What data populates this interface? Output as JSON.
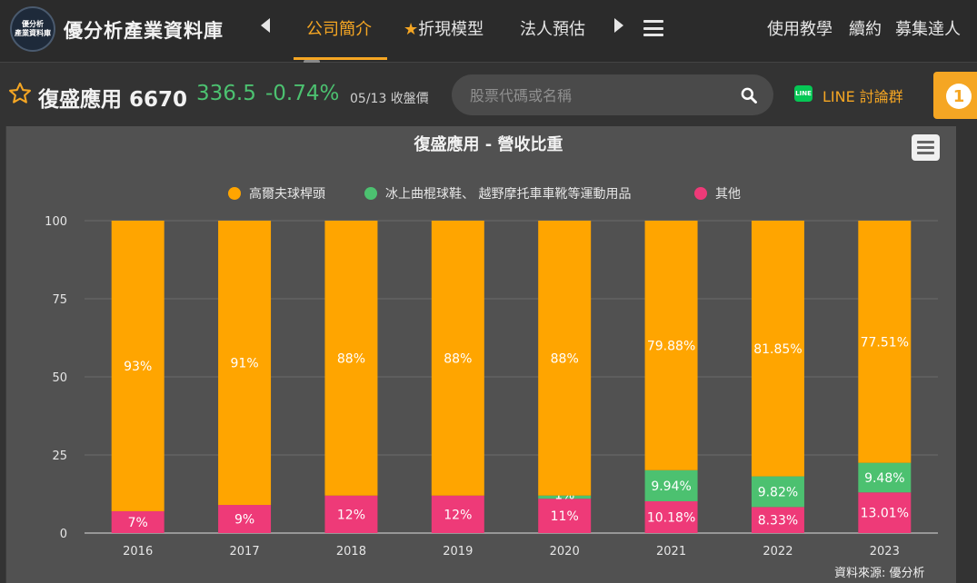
{
  "header": {
    "logo_line1": "優分析",
    "logo_line2": "產業資料庫",
    "site_title": "優分析產業資料庫",
    "nav": [
      {
        "label": "公司簡介",
        "active": true
      },
      {
        "label": "折現模型",
        "icon": "star-icon"
      },
      {
        "label": "法人預估"
      }
    ],
    "right_links": [
      "使用教學",
      "續約",
      "募集達人"
    ]
  },
  "stock": {
    "name_code": "復盛應用 6670",
    "price": "336.5",
    "change": "-0.74%",
    "date_label": "05/13 收盤價",
    "price_color": "#4cc170"
  },
  "search": {
    "placeholder": "股票代碼或名稱"
  },
  "line_group": {
    "label": "LINE 討論群",
    "icon_text": "LINE"
  },
  "notification": {
    "count": "1"
  },
  "chart_data": {
    "type": "bar",
    "stacked": true,
    "title": "復盛應用 - 營收比重",
    "categories": [
      "2016",
      "2017",
      "2018",
      "2019",
      "2020",
      "2021",
      "2022",
      "2023"
    ],
    "ylim": [
      0,
      100
    ],
    "yticks": [
      0,
      25,
      50,
      75,
      100
    ],
    "grid": true,
    "legend_position": "top",
    "series": [
      {
        "name": "其他",
        "color": "#ee3a78",
        "values": [
          7,
          9,
          12,
          12,
          11,
          10.18,
          8.33,
          13.01
        ],
        "labels": [
          "7%",
          "9%",
          "12%",
          "12%",
          "11%",
          "10.18%",
          "8.33%",
          "13.01%"
        ]
      },
      {
        "name": "冰上曲棍球鞋、 越野摩托車車靴等運動用品",
        "color": "#4cc170",
        "values": [
          0,
          0,
          0,
          0,
          1,
          9.94,
          9.82,
          9.48
        ],
        "labels": [
          "",
          "",
          "",
          "",
          "1%",
          "9.94%",
          "9.82%",
          "9.48%"
        ]
      },
      {
        "name": "高爾夫球桿頭",
        "color": "#ffa500",
        "values": [
          93,
          91,
          88,
          88,
          88,
          79.88,
          81.85,
          77.51
        ],
        "labels": [
          "93%",
          "91%",
          "88%",
          "88%",
          "88%",
          "79.88%",
          "81.85%",
          "77.51%"
        ]
      }
    ],
    "legend_order": [
      "高爾夫球桿頭",
      "冰上曲棍球鞋、 越野摩托車車靴等運動用品",
      "其他"
    ],
    "source": "資料來源: 優分析"
  }
}
